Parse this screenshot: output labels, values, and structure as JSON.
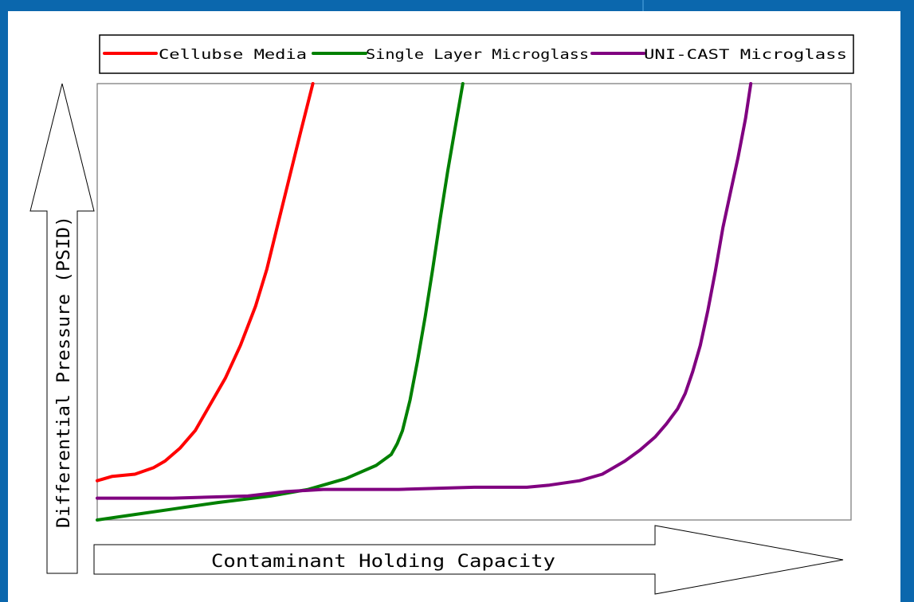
{
  "chart_data": {
    "type": "line",
    "xlabel": "Contaminant Holding Capacity",
    "ylabel": "Differential Pressure (PSID)",
    "xlim": [
      0,
      100
    ],
    "ylim": [
      0,
      100
    ],
    "grid": false,
    "legend": {
      "placement": "top"
    },
    "series": [
      {
        "name": "Cellubse Media",
        "color": "#ff0000",
        "points": [
          [
            0,
            9
          ],
          [
            2,
            10
          ],
          [
            5,
            10.5
          ],
          [
            7.5,
            12
          ],
          [
            9,
            13.5
          ],
          [
            11,
            16.5
          ],
          [
            13,
            20.5
          ],
          [
            15,
            26.5
          ],
          [
            17,
            32.5
          ],
          [
            19,
            40
          ],
          [
            21,
            49
          ],
          [
            22.5,
            57.5
          ],
          [
            24,
            68
          ],
          [
            25.5,
            78.5
          ],
          [
            27,
            89
          ],
          [
            28.6,
            100
          ]
        ]
      },
      {
        "name": "Single Layer Microglass",
        "color": "#008000",
        "points": [
          [
            0,
            0
          ],
          [
            4,
            1
          ],
          [
            10,
            2.5
          ],
          [
            16,
            4
          ],
          [
            23,
            5.5
          ],
          [
            28,
            7
          ],
          [
            33,
            9.5
          ],
          [
            37,
            12.5
          ],
          [
            39,
            15
          ],
          [
            39.8,
            17.5
          ],
          [
            40.5,
            20.5
          ],
          [
            41.5,
            27.5
          ],
          [
            42.5,
            36.5
          ],
          [
            43.5,
            46.5
          ],
          [
            44.5,
            57.5
          ],
          [
            45.5,
            69
          ],
          [
            46.5,
            80
          ],
          [
            47.5,
            90
          ],
          [
            48.5,
            100
          ]
        ]
      },
      {
        "name": "UNI-CAST Microglass",
        "color": "#800080",
        "points": [
          [
            0,
            5
          ],
          [
            10,
            5
          ],
          [
            20,
            5.5
          ],
          [
            25,
            6.5
          ],
          [
            30,
            7
          ],
          [
            40,
            7
          ],
          [
            50,
            7.5
          ],
          [
            57,
            7.5
          ],
          [
            60,
            8
          ],
          [
            64,
            9
          ],
          [
            67,
            10.5
          ],
          [
            70,
            13.5
          ],
          [
            72,
            16
          ],
          [
            74,
            19
          ],
          [
            75.5,
            22
          ],
          [
            77,
            25.5
          ],
          [
            78,
            29
          ],
          [
            79,
            34
          ],
          [
            80,
            40
          ],
          [
            81,
            48
          ],
          [
            82,
            57
          ],
          [
            83,
            67
          ],
          [
            84,
            75
          ],
          [
            85,
            83
          ],
          [
            86,
            92
          ],
          [
            86.7,
            100
          ]
        ]
      }
    ]
  }
}
